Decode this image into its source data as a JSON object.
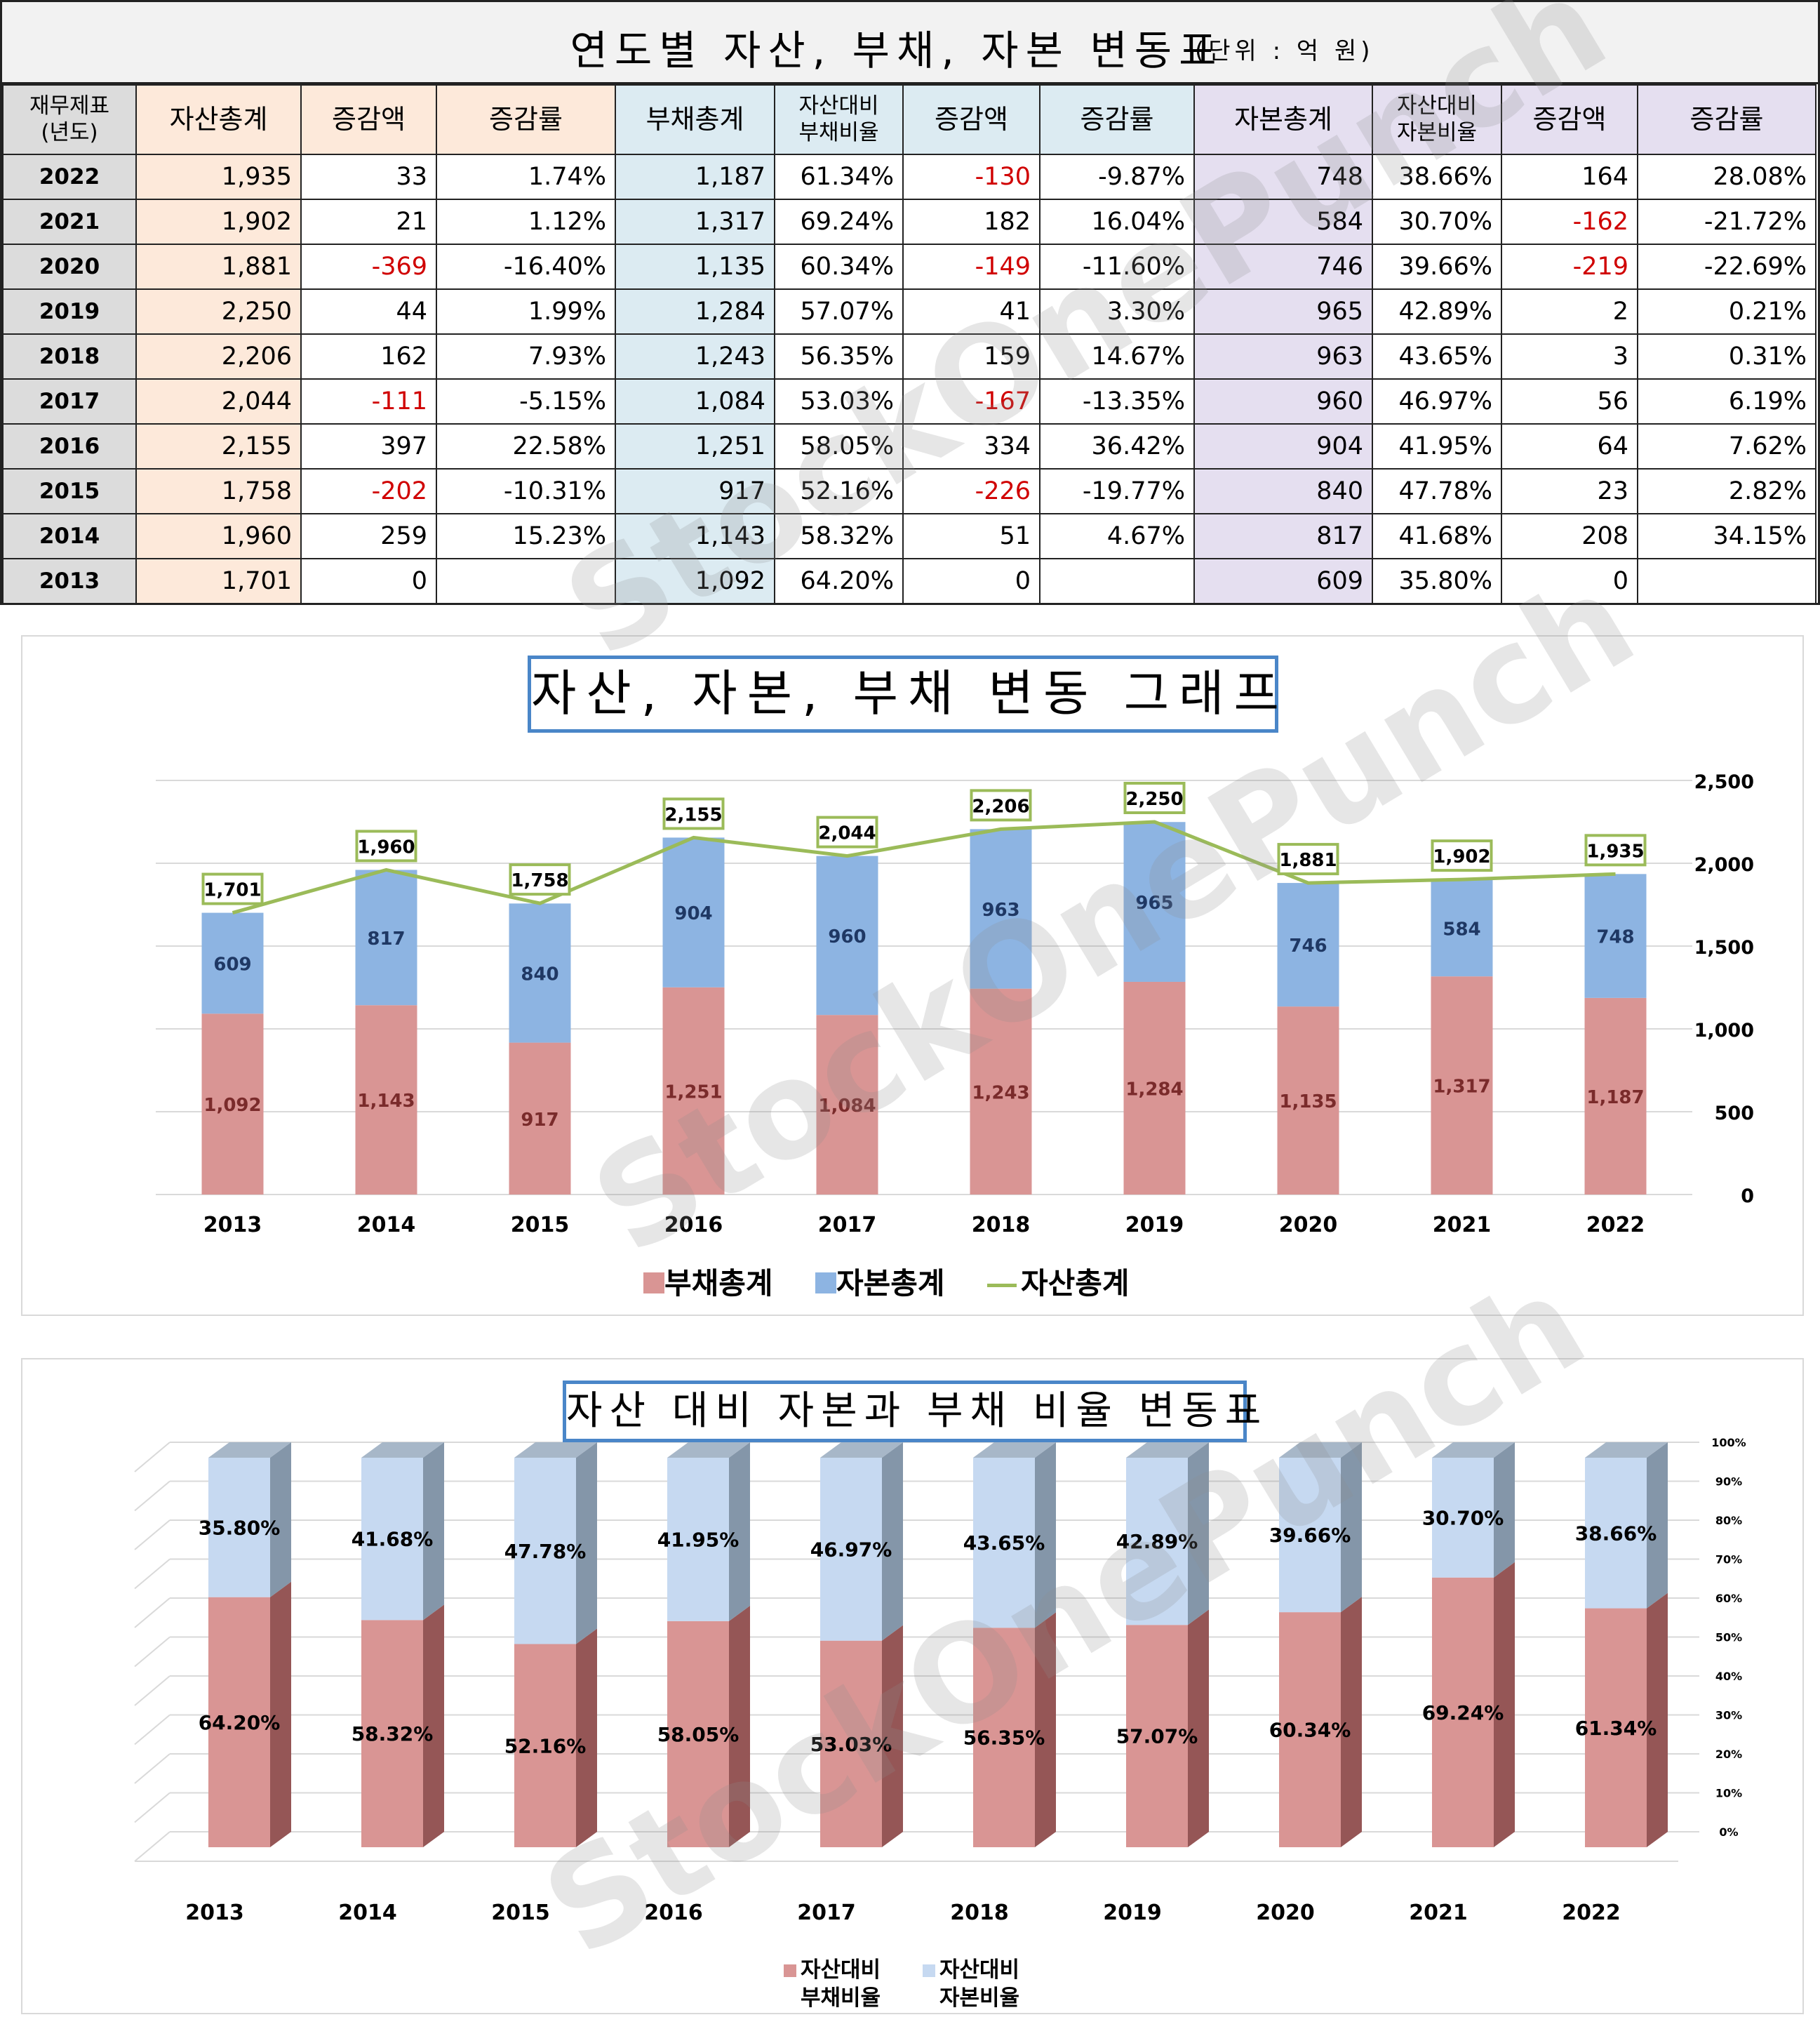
{
  "table": {
    "title": "연도별 자산, 부채, 자본 변동표",
    "unit": "(단위 : 억 원)",
    "headers": {
      "year": "재무제표\n(년도)",
      "asset_total": "자산총계",
      "asset_change": "증감액",
      "asset_rate": "증감률",
      "debt_total": "부채총계",
      "debt_ratio": "자산대비\n부채비율",
      "debt_change": "증감액",
      "debt_rate": "증감률",
      "equity_total": "자본총계",
      "equity_ratio": "자산대비\n자본비율",
      "equity_change": "증감액",
      "equity_rate": "증감률"
    },
    "rows": [
      {
        "year": "2022",
        "asset": "1,935",
        "asset_chg": "33",
        "asset_rate": "1.74%",
        "debt": "1,187",
        "debt_ratio": "61.34%",
        "debt_chg": "-130",
        "debt_rate": "-9.87%",
        "equity": "748",
        "equity_ratio": "38.66%",
        "equity_chg": "164",
        "equity_rate": "28.08%"
      },
      {
        "year": "2021",
        "asset": "1,902",
        "asset_chg": "21",
        "asset_rate": "1.12%",
        "debt": "1,317",
        "debt_ratio": "69.24%",
        "debt_chg": "182",
        "debt_rate": "16.04%",
        "equity": "584",
        "equity_ratio": "30.70%",
        "equity_chg": "-162",
        "equity_rate": "-21.72%"
      },
      {
        "year": "2020",
        "asset": "1,881",
        "asset_chg": "-369",
        "asset_rate": "-16.40%",
        "debt": "1,135",
        "debt_ratio": "60.34%",
        "debt_chg": "-149",
        "debt_rate": "-11.60%",
        "equity": "746",
        "equity_ratio": "39.66%",
        "equity_chg": "-219",
        "equity_rate": "-22.69%"
      },
      {
        "year": "2019",
        "asset": "2,250",
        "asset_chg": "44",
        "asset_rate": "1.99%",
        "debt": "1,284",
        "debt_ratio": "57.07%",
        "debt_chg": "41",
        "debt_rate": "3.30%",
        "equity": "965",
        "equity_ratio": "42.89%",
        "equity_chg": "2",
        "equity_rate": "0.21%"
      },
      {
        "year": "2018",
        "asset": "2,206",
        "asset_chg": "162",
        "asset_rate": "7.93%",
        "debt": "1,243",
        "debt_ratio": "56.35%",
        "debt_chg": "159",
        "debt_rate": "14.67%",
        "equity": "963",
        "equity_ratio": "43.65%",
        "equity_chg": "3",
        "equity_rate": "0.31%"
      },
      {
        "year": "2017",
        "asset": "2,044",
        "asset_chg": "-111",
        "asset_rate": "-5.15%",
        "debt": "1,084",
        "debt_ratio": "53.03%",
        "debt_chg": "-167",
        "debt_rate": "-13.35%",
        "equity": "960",
        "equity_ratio": "46.97%",
        "equity_chg": "56",
        "equity_rate": "6.19%"
      },
      {
        "year": "2016",
        "asset": "2,155",
        "asset_chg": "397",
        "asset_rate": "22.58%",
        "debt": "1,251",
        "debt_ratio": "58.05%",
        "debt_chg": "334",
        "debt_rate": "36.42%",
        "equity": "904",
        "equity_ratio": "41.95%",
        "equity_chg": "64",
        "equity_rate": "7.62%"
      },
      {
        "year": "2015",
        "asset": "1,758",
        "asset_chg": "-202",
        "asset_rate": "-10.31%",
        "debt": "917",
        "debt_ratio": "52.16%",
        "debt_chg": "-226",
        "debt_rate": "-19.77%",
        "equity": "840",
        "equity_ratio": "47.78%",
        "equity_chg": "23",
        "equity_rate": "2.82%"
      },
      {
        "year": "2014",
        "asset": "1,960",
        "asset_chg": "259",
        "asset_rate": "15.23%",
        "debt": "1,143",
        "debt_ratio": "58.32%",
        "debt_chg": "51",
        "debt_rate": "4.67%",
        "equity": "817",
        "equity_ratio": "41.68%",
        "equity_chg": "208",
        "equity_rate": "34.15%"
      },
      {
        "year": "2013",
        "asset": "1,701",
        "asset_chg": "0",
        "asset_rate": "",
        "debt": "1,092",
        "debt_ratio": "64.20%",
        "debt_chg": "0",
        "debt_rate": "",
        "equity": "609",
        "equity_ratio": "35.80%",
        "equity_chg": "0",
        "equity_rate": ""
      }
    ]
  },
  "watermark": "StockOnePunch",
  "colors": {
    "debt": "#d99594",
    "equity": "#8db4e2",
    "asset_line": "#9bbb59",
    "equity_light": "#c6d9f1",
    "negative": "#d00000",
    "title_border": "#4a86c8"
  },
  "chart_data": [
    {
      "type": "bar",
      "stacked": true,
      "title": "자산, 자본, 부채 변동 그래프",
      "categories": [
        "2013",
        "2014",
        "2015",
        "2016",
        "2017",
        "2018",
        "2019",
        "2020",
        "2021",
        "2022"
      ],
      "series": [
        {
          "name": "부채총계",
          "kind": "bar",
          "values": [
            1092,
            1143,
            917,
            1251,
            1084,
            1243,
            1284,
            1135,
            1317,
            1187
          ]
        },
        {
          "name": "자본총계",
          "kind": "bar",
          "values": [
            609,
            817,
            840,
            904,
            960,
            963,
            965,
            746,
            584,
            748
          ]
        },
        {
          "name": "자산총계",
          "kind": "line",
          "values": [
            1701,
            1960,
            1758,
            2155,
            2044,
            2206,
            2250,
            1881,
            1902,
            1935
          ]
        }
      ],
      "ylim": [
        0,
        2500
      ],
      "yaxis_side": "right",
      "yticks": [
        "0",
        "500",
        "1,000",
        "1,500",
        "2,000",
        "2,500"
      ],
      "legend_position": "bottom",
      "grid": true
    },
    {
      "type": "bar",
      "stacked": true,
      "percent": true,
      "three_d": true,
      "title": "자산 대비 자본과 부채 비율 변동표",
      "categories": [
        "2013",
        "2014",
        "2015",
        "2016",
        "2017",
        "2018",
        "2019",
        "2020",
        "2021",
        "2022"
      ],
      "series": [
        {
          "name": "자산대비 부채비율",
          "values": [
            64.2,
            58.32,
            52.16,
            58.05,
            53.03,
            56.35,
            57.07,
            60.34,
            69.24,
            61.34
          ]
        },
        {
          "name": "자산대비 자본비율",
          "values": [
            35.8,
            41.68,
            47.78,
            41.95,
            46.97,
            43.65,
            42.89,
            39.66,
            30.7,
            38.66
          ]
        }
      ],
      "ylim": [
        0,
        100
      ],
      "yaxis_side": "right",
      "yticks": [
        "0%",
        "10%",
        "20%",
        "30%",
        "40%",
        "50%",
        "60%",
        "70%",
        "80%",
        "90%",
        "100%"
      ],
      "legend_position": "bottom",
      "grid": true
    }
  ]
}
